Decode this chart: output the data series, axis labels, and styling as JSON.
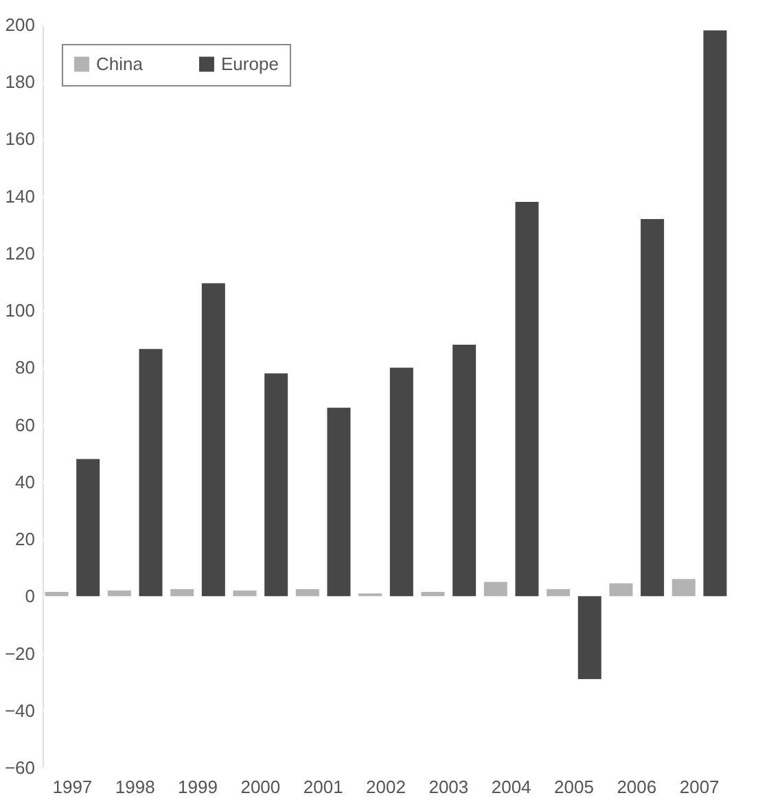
{
  "chart_data": {
    "type": "bar",
    "categories": [
      "1997",
      "1998",
      "1999",
      "2000",
      "2001",
      "2002",
      "2003",
      "2004",
      "2005",
      "2006",
      "2007"
    ],
    "series": [
      {
        "name": "China",
        "color": "#b3b3b3",
        "values": [
          1.5,
          2,
          2.5,
          2,
          2.5,
          1,
          1.5,
          5,
          2.5,
          4.5,
          6
        ]
      },
      {
        "name": "Europe",
        "color": "#474747",
        "values": [
          48,
          86.5,
          109.5,
          78,
          66,
          80,
          88,
          138,
          -29,
          132,
          198
        ]
      }
    ],
    "ylim": [
      -60,
      200
    ],
    "yticks": [
      -60,
      -40,
      -20,
      0,
      20,
      40,
      60,
      80,
      100,
      120,
      140,
      160,
      180,
      200
    ],
    "grid": "y",
    "legend": "top left"
  }
}
